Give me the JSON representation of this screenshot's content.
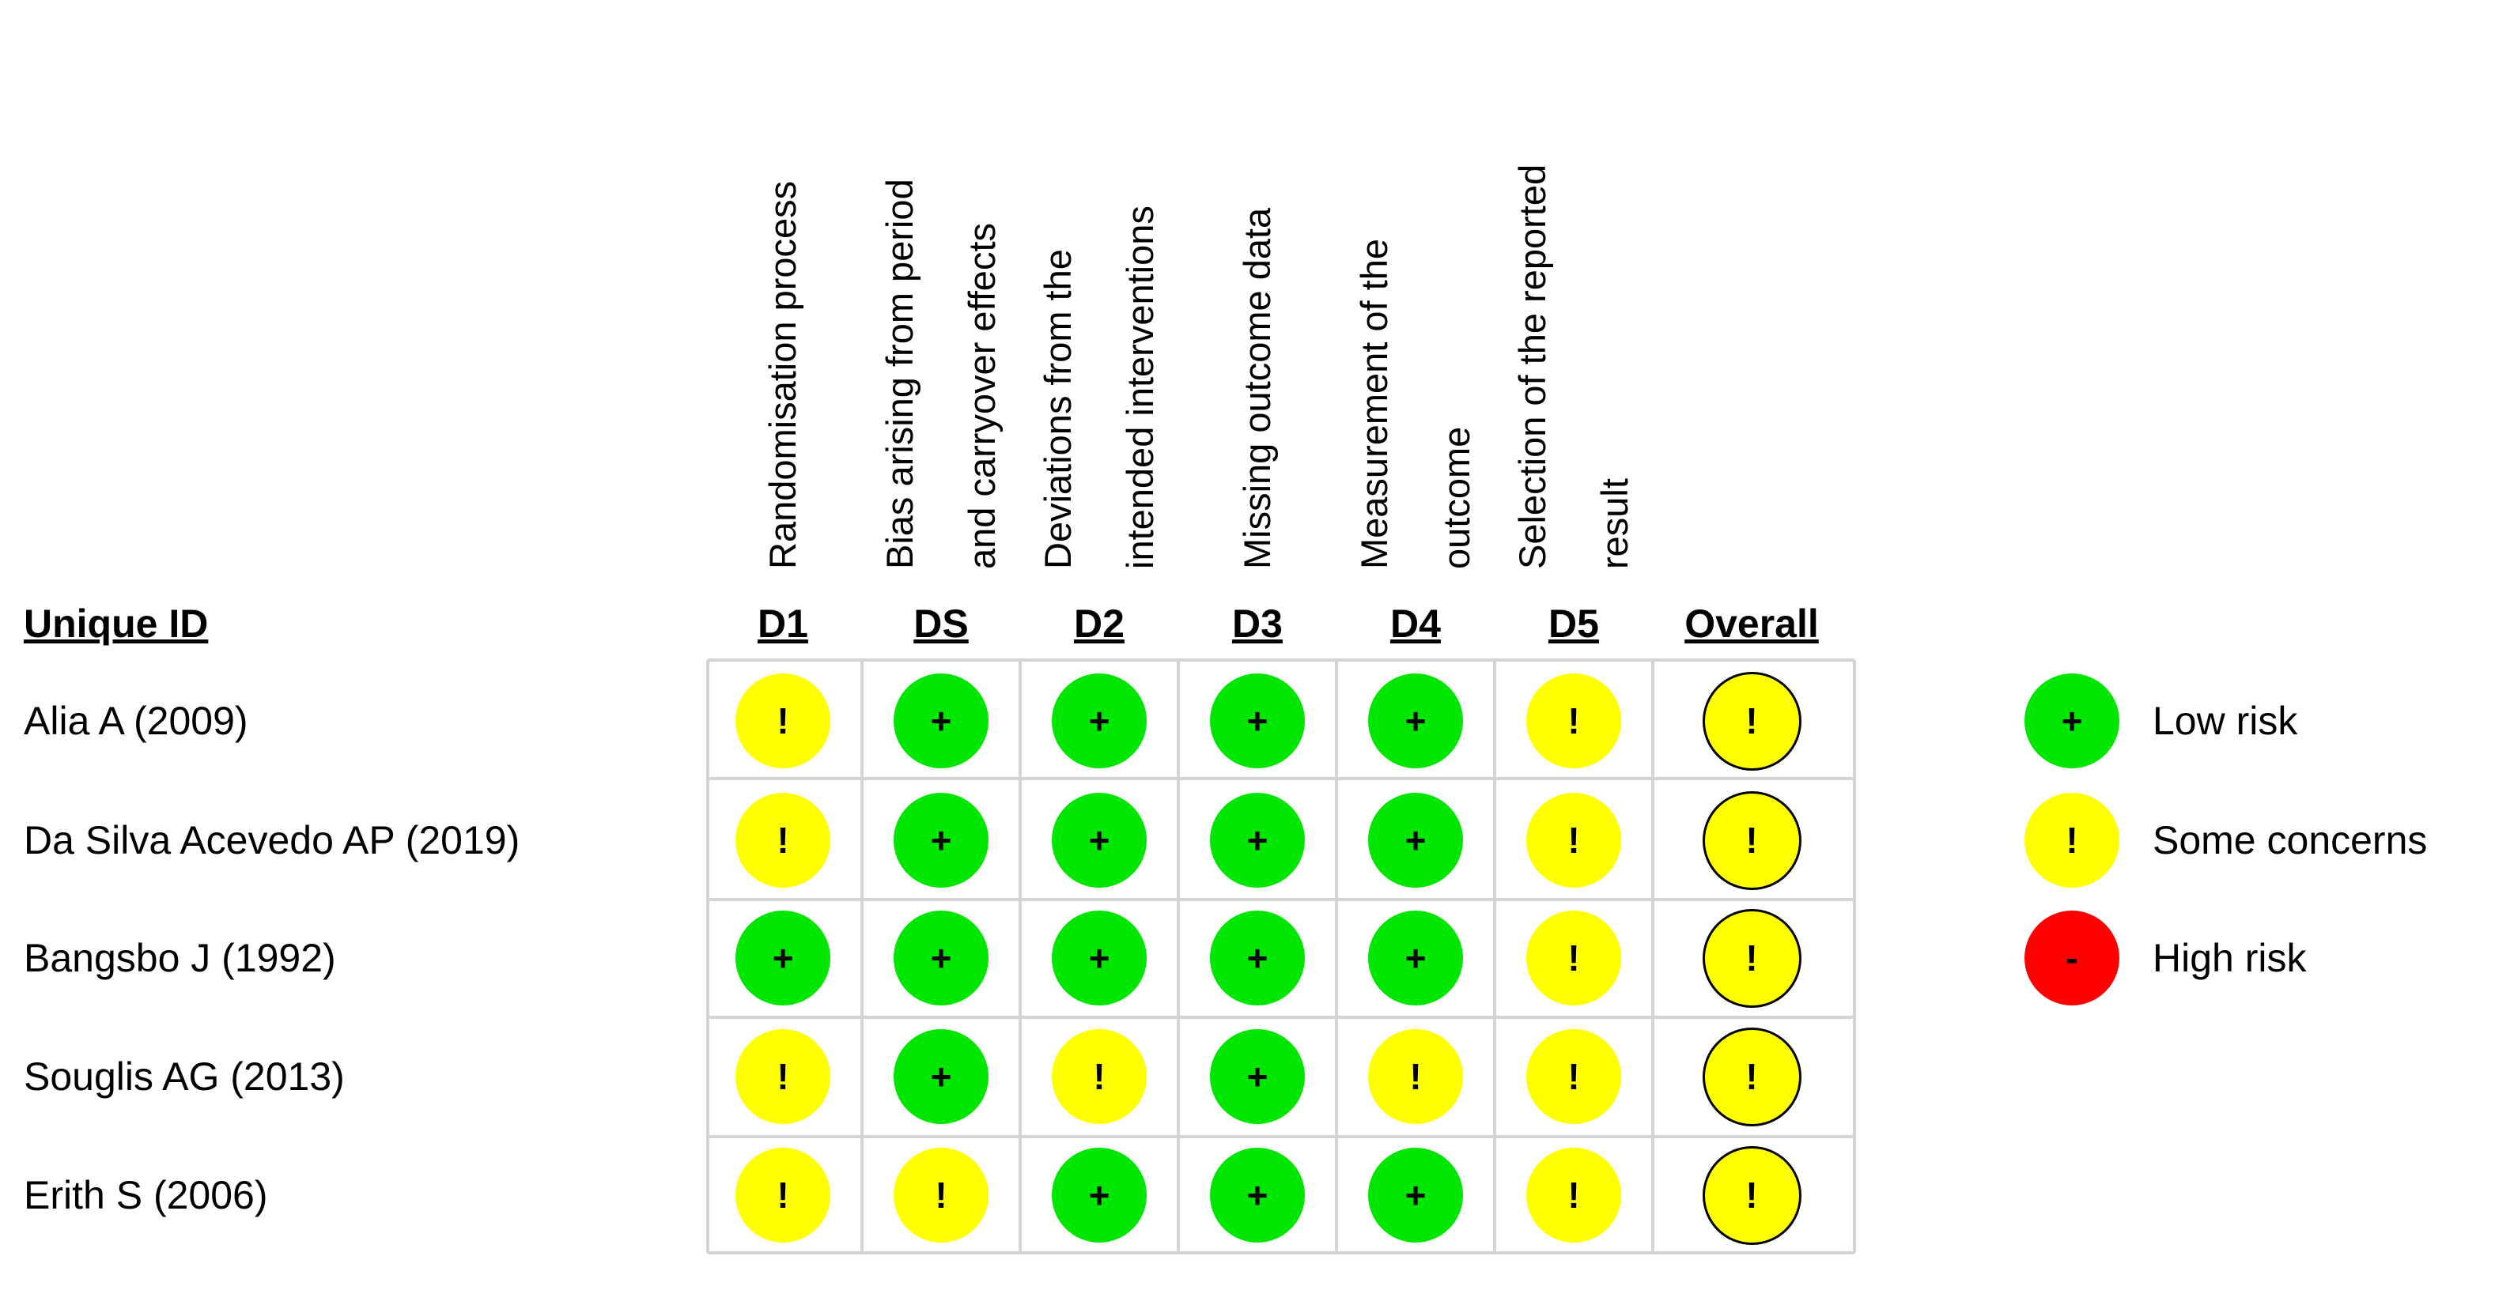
{
  "id_header": "Unique ID",
  "domains": [
    {
      "code": "D1",
      "label_lines": [
        "Randomisation process"
      ]
    },
    {
      "code": "DS",
      "label_lines": [
        "Bias arising from period",
        "and carryover effects"
      ]
    },
    {
      "code": "D2",
      "label_lines": [
        "Deviations from the",
        "intended interventions"
      ]
    },
    {
      "code": "D3",
      "label_lines": [
        "Missing outcome data"
      ]
    },
    {
      "code": "D4",
      "label_lines": [
        "Measurement of the",
        "outcome"
      ]
    },
    {
      "code": "D5",
      "label_lines": [
        "Selection of the reported",
        "result"
      ]
    },
    {
      "code": "Overall",
      "label_lines": []
    }
  ],
  "studies": [
    {
      "id": "Alia A (2009)",
      "judgements": [
        "some",
        "low",
        "low",
        "low",
        "low",
        "some",
        "some"
      ]
    },
    {
      "id": "Da Silva Acevedo AP (2019)",
      "judgements": [
        "some",
        "low",
        "low",
        "low",
        "low",
        "some",
        "some"
      ]
    },
    {
      "id": "Bangsbo J (1992)",
      "judgements": [
        "low",
        "low",
        "low",
        "low",
        "low",
        "some",
        "some"
      ]
    },
    {
      "id": "Souglis AG (2013)",
      "judgements": [
        "some",
        "low",
        "some",
        "low",
        "some",
        "some",
        "some"
      ]
    },
    {
      "id": "Erith S (2006)",
      "judgements": [
        "some",
        "some",
        "low",
        "low",
        "low",
        "some",
        "some"
      ]
    }
  ],
  "levels": {
    "low": {
      "symbol": "+",
      "color": "#00e600",
      "label": "Low risk"
    },
    "some": {
      "symbol": "!",
      "color": "#ffff00",
      "label": "Some concerns"
    },
    "high": {
      "symbol": "-",
      "color": "#ff0000",
      "label": "High risk"
    }
  },
  "legend_order": [
    "low",
    "some",
    "high"
  ]
}
